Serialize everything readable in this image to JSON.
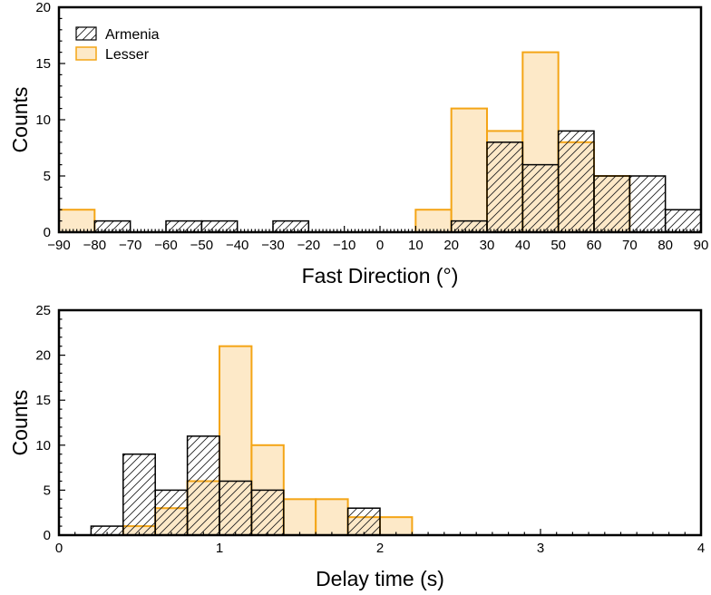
{
  "chart_data": [
    {
      "type": "bar",
      "title": "",
      "xlabel": "Fast Direction (°)",
      "ylabel": "Counts",
      "xlim": [
        -90,
        90
      ],
      "ylim": [
        0,
        20
      ],
      "xticks": [
        -90,
        -80,
        -70,
        -60,
        -50,
        -40,
        -30,
        -20,
        -10,
        0,
        10,
        20,
        30,
        40,
        50,
        60,
        70,
        80,
        90
      ],
      "yticks": [
        0,
        5,
        10,
        15,
        20
      ],
      "bin_width": 10,
      "legend": {
        "placement": "top-left",
        "entries": [
          "Armenia",
          "Lesser"
        ]
      },
      "series": [
        {
          "name": "Armenia",
          "style": "hatched",
          "bin_starts": [
            -90,
            -80,
            -70,
            -60,
            -50,
            -40,
            -30,
            -20,
            -10,
            0,
            10,
            20,
            30,
            40,
            50,
            60,
            70,
            80
          ],
          "values": [
            0,
            1,
            0,
            1,
            1,
            0,
            1,
            0,
            0,
            0,
            0,
            1,
            8,
            6,
            9,
            5,
            5,
            2
          ]
        },
        {
          "name": "Lesser",
          "style": "filled",
          "bin_starts": [
            -90,
            -80,
            -70,
            -60,
            -50,
            -40,
            -30,
            -20,
            -10,
            0,
            10,
            20,
            30,
            40,
            50,
            60,
            70,
            80
          ],
          "values": [
            2,
            0,
            0,
            0,
            0,
            0,
            0,
            0,
            0,
            0,
            2,
            11,
            9,
            16,
            8,
            5,
            0,
            0
          ]
        }
      ]
    },
    {
      "type": "bar",
      "title": "",
      "xlabel": "Delay time (s)",
      "ylabel": "Counts",
      "xlim": [
        0,
        4
      ],
      "ylim": [
        0,
        25
      ],
      "xticks": [
        0,
        1,
        2,
        3,
        4
      ],
      "yticks": [
        0,
        5,
        10,
        15,
        20,
        25
      ],
      "bin_width": 0.2,
      "series": [
        {
          "name": "Armenia",
          "style": "hatched",
          "bin_starts": [
            0.2,
            0.4,
            0.6,
            0.8,
            1.0,
            1.2,
            1.4,
            1.6,
            1.8,
            2.0
          ],
          "values": [
            1,
            9,
            5,
            11,
            6,
            5,
            0,
            0,
            3,
            0
          ]
        },
        {
          "name": "Lesser",
          "style": "filled",
          "bin_starts": [
            0.2,
            0.4,
            0.6,
            0.8,
            1.0,
            1.2,
            1.4,
            1.6,
            1.8,
            2.0
          ],
          "values": [
            0,
            1,
            3,
            6,
            21,
            10,
            4,
            4,
            2,
            2
          ]
        }
      ]
    }
  ],
  "colors": {
    "lesser_fill": "#fde9c8",
    "lesser_edge": "#f4a516",
    "armenia_edge": "#000000",
    "axis": "#000000"
  }
}
